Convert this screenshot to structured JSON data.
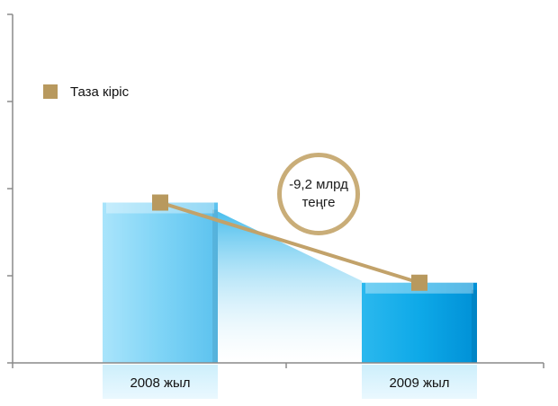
{
  "chart_data": {
    "type": "bar",
    "categories": [
      "2008 жыл",
      "2009 жыл"
    ],
    "series": [
      {
        "name": "Таза кіріс",
        "values": [
          18.4,
          9.2
        ]
      }
    ],
    "ylim": [
      0,
      40
    ],
    "y_ticks": [
      0,
      10,
      20,
      30,
      40
    ],
    "y_tick_labels_shown": false,
    "grid": false,
    "legend": {
      "placement": "top-left",
      "entries": [
        "Таза кіріс"
      ]
    },
    "annotation": {
      "line1": "-9,2 млрд",
      "line2": "теңге"
    },
    "colors": {
      "bar_2008": "#7dd3f5",
      "bar_2009": "#0aa7e6",
      "line": "#c2a26a",
      "marker": "#b8995e",
      "annotation_ring": "#c9ad78",
      "axis": "#8a8a8a"
    },
    "xlabel": "",
    "ylabel": ""
  }
}
